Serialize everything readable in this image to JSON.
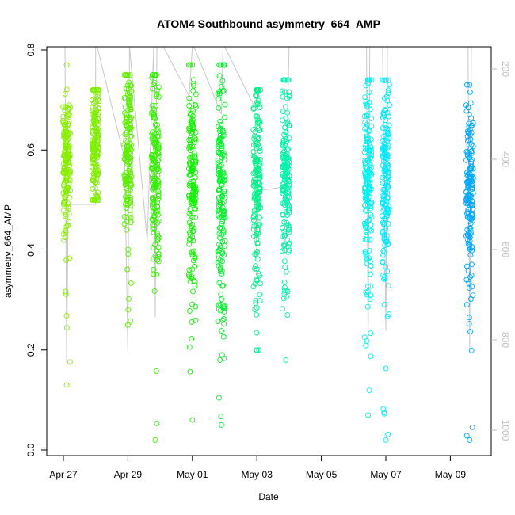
{
  "chart_data": {
    "type": "scatter",
    "title": "ATOM4 Southbound asymmetry_664_AMP",
    "xlabel": "Date",
    "ylabel": "asymmetry_664_AMP",
    "x_ticks": [
      "Apr 27",
      "Apr 29",
      "May 01",
      "May 03",
      "May 05",
      "May 07",
      "May 09"
    ],
    "y_ticks": [
      "0.0",
      "0.2",
      "0.4",
      "0.6",
      "0.8"
    ],
    "y2_ticks": [
      "200",
      "400",
      "600",
      "800",
      "1000"
    ],
    "xlim": [
      "2022-04-26 12:00",
      "2022-05-10 06:00"
    ],
    "ylim": [
      0,
      0.8
    ],
    "y2lim": [
      130,
      1050
    ],
    "y2_inverted": true,
    "grid": false,
    "marker": "open-circle",
    "depth_trace_color": "#c8c8c8",
    "casts": [
      {
        "day": 0.1,
        "center": 0.58,
        "spread": 0.07,
        "low": 0.13,
        "high": 0.77,
        "color": "#88ee00"
      },
      {
        "day": 1.0,
        "center": 0.61,
        "spread": 0.06,
        "low": 0.5,
        "high": 0.72,
        "color": "#80ee00"
      },
      {
        "day": 2.0,
        "center": 0.59,
        "spread": 0.09,
        "low": 0.25,
        "high": 0.75,
        "color": "#5cee00"
      },
      {
        "day": 2.85,
        "center": 0.56,
        "spread": 0.1,
        "low": 0.02,
        "high": 0.75,
        "color": "#33f000"
      },
      {
        "day": 4.0,
        "center": 0.52,
        "spread": 0.12,
        "low": 0.06,
        "high": 0.77,
        "color": "#11f200"
      },
      {
        "day": 4.9,
        "center": 0.5,
        "spread": 0.13,
        "low": 0.05,
        "high": 0.77,
        "color": "#00f228"
      },
      {
        "day": 6.0,
        "center": 0.52,
        "spread": 0.11,
        "low": 0.2,
        "high": 0.72,
        "color": "#00f28a"
      },
      {
        "day": 6.9,
        "center": 0.55,
        "spread": 0.1,
        "low": 0.18,
        "high": 0.74,
        "color": "#00f2a8"
      },
      {
        "day": 9.45,
        "center": 0.53,
        "spread": 0.11,
        "low": 0.07,
        "high": 0.74,
        "color": "#00f0f0"
      },
      {
        "day": 10.0,
        "center": 0.53,
        "spread": 0.1,
        "low": 0.02,
        "high": 0.74,
        "color": "#00e8ff"
      },
      {
        "day": 12.6,
        "center": 0.52,
        "spread": 0.1,
        "low": 0.02,
        "high": 0.73,
        "color": "#00a8ff"
      }
    ],
    "depth_trace": [
      [
        0.05,
        130
      ],
      [
        0.1,
        850
      ],
      [
        0.15,
        500
      ],
      [
        1.0,
        500
      ],
      [
        1.0,
        130
      ],
      [
        1.05,
        130
      ],
      [
        1.9,
        400
      ],
      [
        2.0,
        830
      ],
      [
        2.05,
        130
      ],
      [
        2.6,
        580
      ],
      [
        2.8,
        130
      ],
      [
        2.85,
        750
      ],
      [
        2.9,
        130
      ],
      [
        3.1,
        130
      ],
      [
        3.9,
        260
      ],
      [
        4.0,
        130
      ],
      [
        4.05,
        130
      ],
      [
        4.9,
        300
      ],
      [
        4.95,
        130
      ],
      [
        5.0,
        130
      ],
      [
        5.9,
        280
      ],
      [
        6.0,
        620
      ],
      [
        6.05,
        470
      ],
      [
        6.9,
        460
      ],
      [
        7.0,
        130
      ],
      [
        7.05,
        130
      ],
      [
        9.4,
        130
      ],
      [
        9.45,
        820
      ],
      [
        9.5,
        130
      ],
      [
        9.9,
        130
      ],
      [
        10.0,
        780
      ],
      [
        10.05,
        130
      ],
      [
        12.55,
        130
      ],
      [
        12.6,
        820
      ],
      [
        12.65,
        130
      ]
    ]
  }
}
